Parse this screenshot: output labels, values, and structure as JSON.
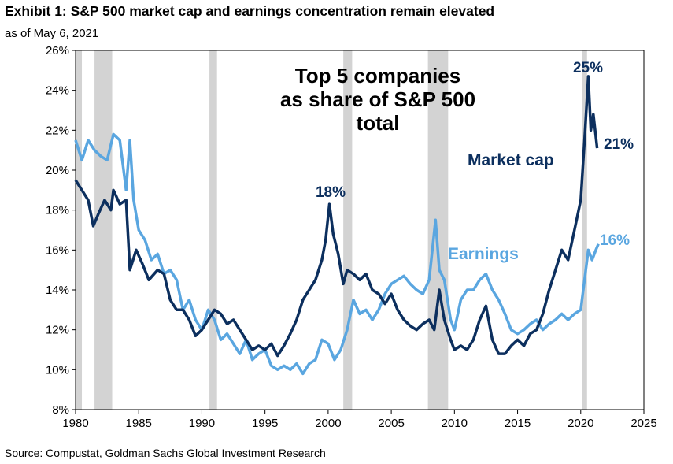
{
  "header": {
    "title": "Exhibit 1: S&P 500 market cap and earnings concentration remain elevated",
    "subtitle": "as of May 6, 2021"
  },
  "footer": {
    "source": "Source: Compustat, Goldman Sachs Global Investment Research"
  },
  "colors": {
    "market_cap": "#0c2f5e",
    "earnings": "#5aa6e0",
    "recession": "#d3d3d3"
  },
  "chart_data": {
    "type": "line",
    "title": "Top 5 companies as share of S&P 500 total",
    "title_lines": [
      "Top 5 companies",
      "as share of S&P 500",
      "total"
    ],
    "xlim": [
      1980,
      2025
    ],
    "ylim": [
      8,
      26
    ],
    "x_ticks": [
      1980,
      1985,
      1990,
      1995,
      2000,
      2005,
      2010,
      2015,
      2020,
      2025
    ],
    "y_ticks": [
      8,
      10,
      12,
      14,
      16,
      18,
      20,
      22,
      24,
      26
    ],
    "y_tick_labels": [
      "8%",
      "10%",
      "12%",
      "14%",
      "16%",
      "18%",
      "20%",
      "22%",
      "24%",
      "26%"
    ],
    "recessions": [
      [
        1980.0,
        1980.5
      ],
      [
        1981.5,
        1982.9
      ],
      [
        1990.6,
        1991.2
      ],
      [
        2001.2,
        2001.9
      ],
      [
        2007.9,
        2009.5
      ],
      [
        2020.1,
        2020.5
      ]
    ],
    "series": [
      {
        "name": "Market cap",
        "color": "#0c2f5e",
        "points": [
          [
            1980.0,
            19.5
          ],
          [
            1980.5,
            19.0
          ],
          [
            1981.0,
            18.5
          ],
          [
            1981.4,
            17.2
          ],
          [
            1981.8,
            17.8
          ],
          [
            1982.3,
            18.5
          ],
          [
            1982.8,
            18.0
          ],
          [
            1983.0,
            19.0
          ],
          [
            1983.5,
            18.3
          ],
          [
            1984.0,
            18.5
          ],
          [
            1984.3,
            15.0
          ],
          [
            1984.8,
            16.0
          ],
          [
            1985.3,
            15.3
          ],
          [
            1985.8,
            14.5
          ],
          [
            1986.5,
            15.0
          ],
          [
            1987.0,
            14.8
          ],
          [
            1987.5,
            13.5
          ],
          [
            1988.0,
            13.0
          ],
          [
            1988.5,
            13.0
          ],
          [
            1989.0,
            12.5
          ],
          [
            1989.5,
            11.7
          ],
          [
            1990.0,
            12.0
          ],
          [
            1990.5,
            12.5
          ],
          [
            1991.0,
            13.0
          ],
          [
            1991.5,
            12.8
          ],
          [
            1992.0,
            12.3
          ],
          [
            1992.5,
            12.5
          ],
          [
            1993.0,
            12.0
          ],
          [
            1993.5,
            11.5
          ],
          [
            1994.0,
            11.0
          ],
          [
            1994.5,
            11.2
          ],
          [
            1995.0,
            11.0
          ],
          [
            1995.5,
            11.3
          ],
          [
            1996.0,
            10.7
          ],
          [
            1996.5,
            11.2
          ],
          [
            1997.0,
            11.8
          ],
          [
            1997.5,
            12.5
          ],
          [
            1998.0,
            13.5
          ],
          [
            1998.5,
            14.0
          ],
          [
            1999.0,
            14.5
          ],
          [
            1999.5,
            15.5
          ],
          [
            1999.8,
            16.5
          ],
          [
            2000.1,
            18.3
          ],
          [
            2000.4,
            16.8
          ],
          [
            2000.8,
            15.8
          ],
          [
            2001.2,
            14.3
          ],
          [
            2001.5,
            15.0
          ],
          [
            2002.0,
            14.8
          ],
          [
            2002.5,
            14.5
          ],
          [
            2003.0,
            14.8
          ],
          [
            2003.5,
            14.0
          ],
          [
            2004.0,
            13.8
          ],
          [
            2004.5,
            13.3
          ],
          [
            2005.0,
            13.8
          ],
          [
            2005.5,
            13.0
          ],
          [
            2006.0,
            12.5
          ],
          [
            2006.5,
            12.2
          ],
          [
            2007.0,
            12.0
          ],
          [
            2007.5,
            12.3
          ],
          [
            2008.0,
            12.5
          ],
          [
            2008.4,
            12.0
          ],
          [
            2008.8,
            14.0
          ],
          [
            2009.2,
            12.5
          ],
          [
            2009.7,
            11.5
          ],
          [
            2010.0,
            11.0
          ],
          [
            2010.5,
            11.2
          ],
          [
            2011.0,
            11.0
          ],
          [
            2011.5,
            11.5
          ],
          [
            2012.0,
            12.5
          ],
          [
            2012.5,
            13.2
          ],
          [
            2013.0,
            11.5
          ],
          [
            2013.5,
            10.8
          ],
          [
            2014.0,
            10.8
          ],
          [
            2014.5,
            11.2
          ],
          [
            2015.0,
            11.5
          ],
          [
            2015.5,
            11.2
          ],
          [
            2016.0,
            11.8
          ],
          [
            2016.5,
            12.0
          ],
          [
            2017.0,
            12.8
          ],
          [
            2017.5,
            14.0
          ],
          [
            2018.0,
            15.0
          ],
          [
            2018.5,
            16.0
          ],
          [
            2019.0,
            15.5
          ],
          [
            2019.5,
            17.0
          ],
          [
            2020.0,
            18.5
          ],
          [
            2020.3,
            21.5
          ],
          [
            2020.6,
            24.7
          ],
          [
            2020.8,
            22.0
          ],
          [
            2021.0,
            22.8
          ],
          [
            2021.3,
            21.1
          ]
        ]
      },
      {
        "name": "Earnings",
        "color": "#5aa6e0",
        "points": [
          [
            1980.0,
            21.5
          ],
          [
            1980.5,
            20.5
          ],
          [
            1981.0,
            21.5
          ],
          [
            1981.5,
            21.0
          ],
          [
            1982.0,
            20.7
          ],
          [
            1982.5,
            20.5
          ],
          [
            1983.0,
            21.8
          ],
          [
            1983.5,
            21.5
          ],
          [
            1984.0,
            19.0
          ],
          [
            1984.3,
            21.5
          ],
          [
            1984.6,
            18.5
          ],
          [
            1985.0,
            17.0
          ],
          [
            1985.5,
            16.5
          ],
          [
            1986.0,
            15.5
          ],
          [
            1986.5,
            15.8
          ],
          [
            1987.0,
            14.8
          ],
          [
            1987.5,
            15.0
          ],
          [
            1988.0,
            14.5
          ],
          [
            1988.5,
            13.0
          ],
          [
            1989.0,
            13.5
          ],
          [
            1989.5,
            12.5
          ],
          [
            1990.0,
            12.0
          ],
          [
            1990.5,
            13.0
          ],
          [
            1991.0,
            12.5
          ],
          [
            1991.5,
            11.5
          ],
          [
            1992.0,
            11.8
          ],
          [
            1992.5,
            11.3
          ],
          [
            1993.0,
            10.8
          ],
          [
            1993.5,
            11.5
          ],
          [
            1994.0,
            10.5
          ],
          [
            1994.5,
            10.8
          ],
          [
            1995.0,
            11.0
          ],
          [
            1995.5,
            10.2
          ],
          [
            1996.0,
            10.0
          ],
          [
            1996.5,
            10.2
          ],
          [
            1997.0,
            10.0
          ],
          [
            1997.5,
            10.3
          ],
          [
            1998.0,
            9.8
          ],
          [
            1998.5,
            10.3
          ],
          [
            1999.0,
            10.5
          ],
          [
            1999.5,
            11.5
          ],
          [
            2000.0,
            11.3
          ],
          [
            2000.5,
            10.5
          ],
          [
            2001.0,
            11.0
          ],
          [
            2001.5,
            12.0
          ],
          [
            2002.0,
            13.5
          ],
          [
            2002.5,
            12.8
          ],
          [
            2003.0,
            13.0
          ],
          [
            2003.5,
            12.5
          ],
          [
            2004.0,
            13.0
          ],
          [
            2004.5,
            13.8
          ],
          [
            2005.0,
            14.3
          ],
          [
            2005.5,
            14.5
          ],
          [
            2006.0,
            14.7
          ],
          [
            2006.5,
            14.3
          ],
          [
            2007.0,
            14.0
          ],
          [
            2007.5,
            13.8
          ],
          [
            2008.0,
            14.5
          ],
          [
            2008.5,
            17.5
          ],
          [
            2008.8,
            15.0
          ],
          [
            2009.2,
            14.5
          ],
          [
            2009.7,
            12.5
          ],
          [
            2010.0,
            12.0
          ],
          [
            2010.5,
            13.5
          ],
          [
            2011.0,
            14.0
          ],
          [
            2011.5,
            14.0
          ],
          [
            2012.0,
            14.5
          ],
          [
            2012.5,
            14.8
          ],
          [
            2013.0,
            14.0
          ],
          [
            2013.5,
            13.5
          ],
          [
            2014.0,
            12.8
          ],
          [
            2014.5,
            12.0
          ],
          [
            2015.0,
            11.8
          ],
          [
            2015.5,
            12.0
          ],
          [
            2016.0,
            12.3
          ],
          [
            2016.5,
            12.5
          ],
          [
            2017.0,
            12.0
          ],
          [
            2017.5,
            12.3
          ],
          [
            2018.0,
            12.5
          ],
          [
            2018.5,
            12.8
          ],
          [
            2019.0,
            12.5
          ],
          [
            2019.5,
            12.8
          ],
          [
            2020.0,
            13.0
          ],
          [
            2020.3,
            14.5
          ],
          [
            2020.6,
            16.0
          ],
          [
            2020.9,
            15.5
          ],
          [
            2021.2,
            16.0
          ],
          [
            2021.4,
            16.3
          ]
        ]
      }
    ],
    "annotations": {
      "peak_2000": "18%",
      "peak_2020": "25%",
      "last_market_cap": "21%",
      "last_earnings": "16%",
      "market_cap_label": "Market cap",
      "earnings_label": "Earnings"
    }
  }
}
